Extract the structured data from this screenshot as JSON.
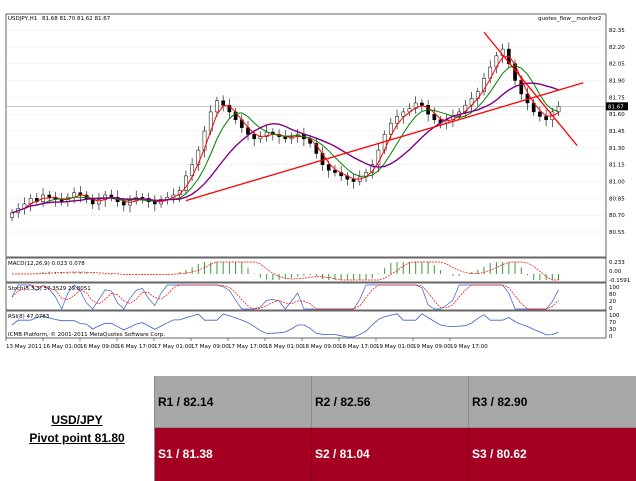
{
  "chart_data": {
    "type": "candlestick",
    "symbol_label": "USDJPY,H1",
    "ohlc_header": "81.68 81.70 81.62 81.67",
    "watermark": "quotes_flow__monitor2",
    "ylim": [
      80.55,
      82.35
    ],
    "y_ticks": [
      "82.35",
      "82.20",
      "82.05",
      "81.90",
      "81.75",
      "81.60",
      "81.45",
      "81.30",
      "81.15",
      "81.00",
      "80.85",
      "80.70",
      "80.55"
    ],
    "current_price": "81.67",
    "x_ticks": [
      "13 May 2011",
      "16 May 01:00",
      "16 May 09:00",
      "16 May 17:00",
      "17 May 01:00",
      "17 May 09:00",
      "17 May 17:00",
      "18 May 01:00",
      "18 May 09:00",
      "18 May 17:00",
      "19 May 01:00",
      "19 May 09:00",
      "19 May 17:00"
    ],
    "close": [
      80.72,
      80.76,
      80.8,
      80.85,
      80.82,
      80.88,
      80.86,
      80.84,
      80.82,
      80.86,
      80.9,
      80.88,
      80.84,
      80.8,
      80.84,
      80.88,
      80.86,
      80.82,
      80.79,
      80.83,
      80.86,
      80.85,
      80.82,
      80.8,
      80.84,
      80.86,
      80.88,
      80.92,
      81.05,
      81.15,
      81.28,
      81.45,
      81.62,
      81.72,
      81.68,
      81.62,
      81.55,
      81.48,
      81.42,
      81.38,
      81.4,
      81.44,
      81.42,
      81.4,
      81.38,
      81.4,
      81.42,
      81.38,
      81.34,
      81.25,
      81.15,
      81.1,
      81.08,
      81.05,
      81.02,
      81.0,
      81.04,
      81.08,
      81.15,
      81.28,
      81.42,
      81.52,
      81.58,
      81.62,
      81.65,
      81.7,
      81.68,
      81.6,
      81.55,
      81.52,
      81.55,
      81.58,
      81.62,
      81.68,
      81.74,
      81.8,
      81.92,
      82.02,
      82.12,
      82.18,
      82.05,
      81.9,
      81.78,
      81.7,
      81.62,
      81.58,
      81.55,
      81.62,
      81.67
    ],
    "series": [
      {
        "name": "MA fast",
        "color": "#ff0000"
      },
      {
        "name": "MA mid",
        "color": "#008000"
      },
      {
        "name": "MA slow",
        "color": "#800080"
      }
    ],
    "trendlines": [
      {
        "color": "#ff0000",
        "from": [
          28,
          80.83
        ],
        "to": [
          92,
          81.88
        ]
      },
      {
        "color": "#ff0000",
        "from": [
          76,
          82.33
        ],
        "to": [
          91,
          81.32
        ]
      }
    ],
    "macd": {
      "label": "MACD(12,26,9) 0.023 0.078",
      "ticks": [
        "0.233",
        "0.00",
        "-0.1591"
      ]
    },
    "stoch": {
      "label": "Stoch(5,3,3) 37.3529 29.8051",
      "ticks": [
        "100",
        "80",
        "20",
        "0"
      ]
    },
    "rsi": {
      "label": "RSI(8) 47.0783",
      "ticks": [
        "100",
        "70",
        "30",
        "0"
      ],
      "footer": "ICMB Platform, © 2001-2011 MetaQuotes Software Corp."
    }
  },
  "pivot_table": {
    "pair": "USD/JPY",
    "pivot": "Pivot point 81.80",
    "resistance": [
      "R1 / 82.14",
      "R2 / 82.56",
      "R3 / 82.90"
    ],
    "support": [
      "S1 / 81.38",
      "S2 / 81.04",
      "S3 / 80.62"
    ],
    "colors": {
      "resistance_bg": "#a8a8a8",
      "support_bg": "#a50021"
    }
  }
}
